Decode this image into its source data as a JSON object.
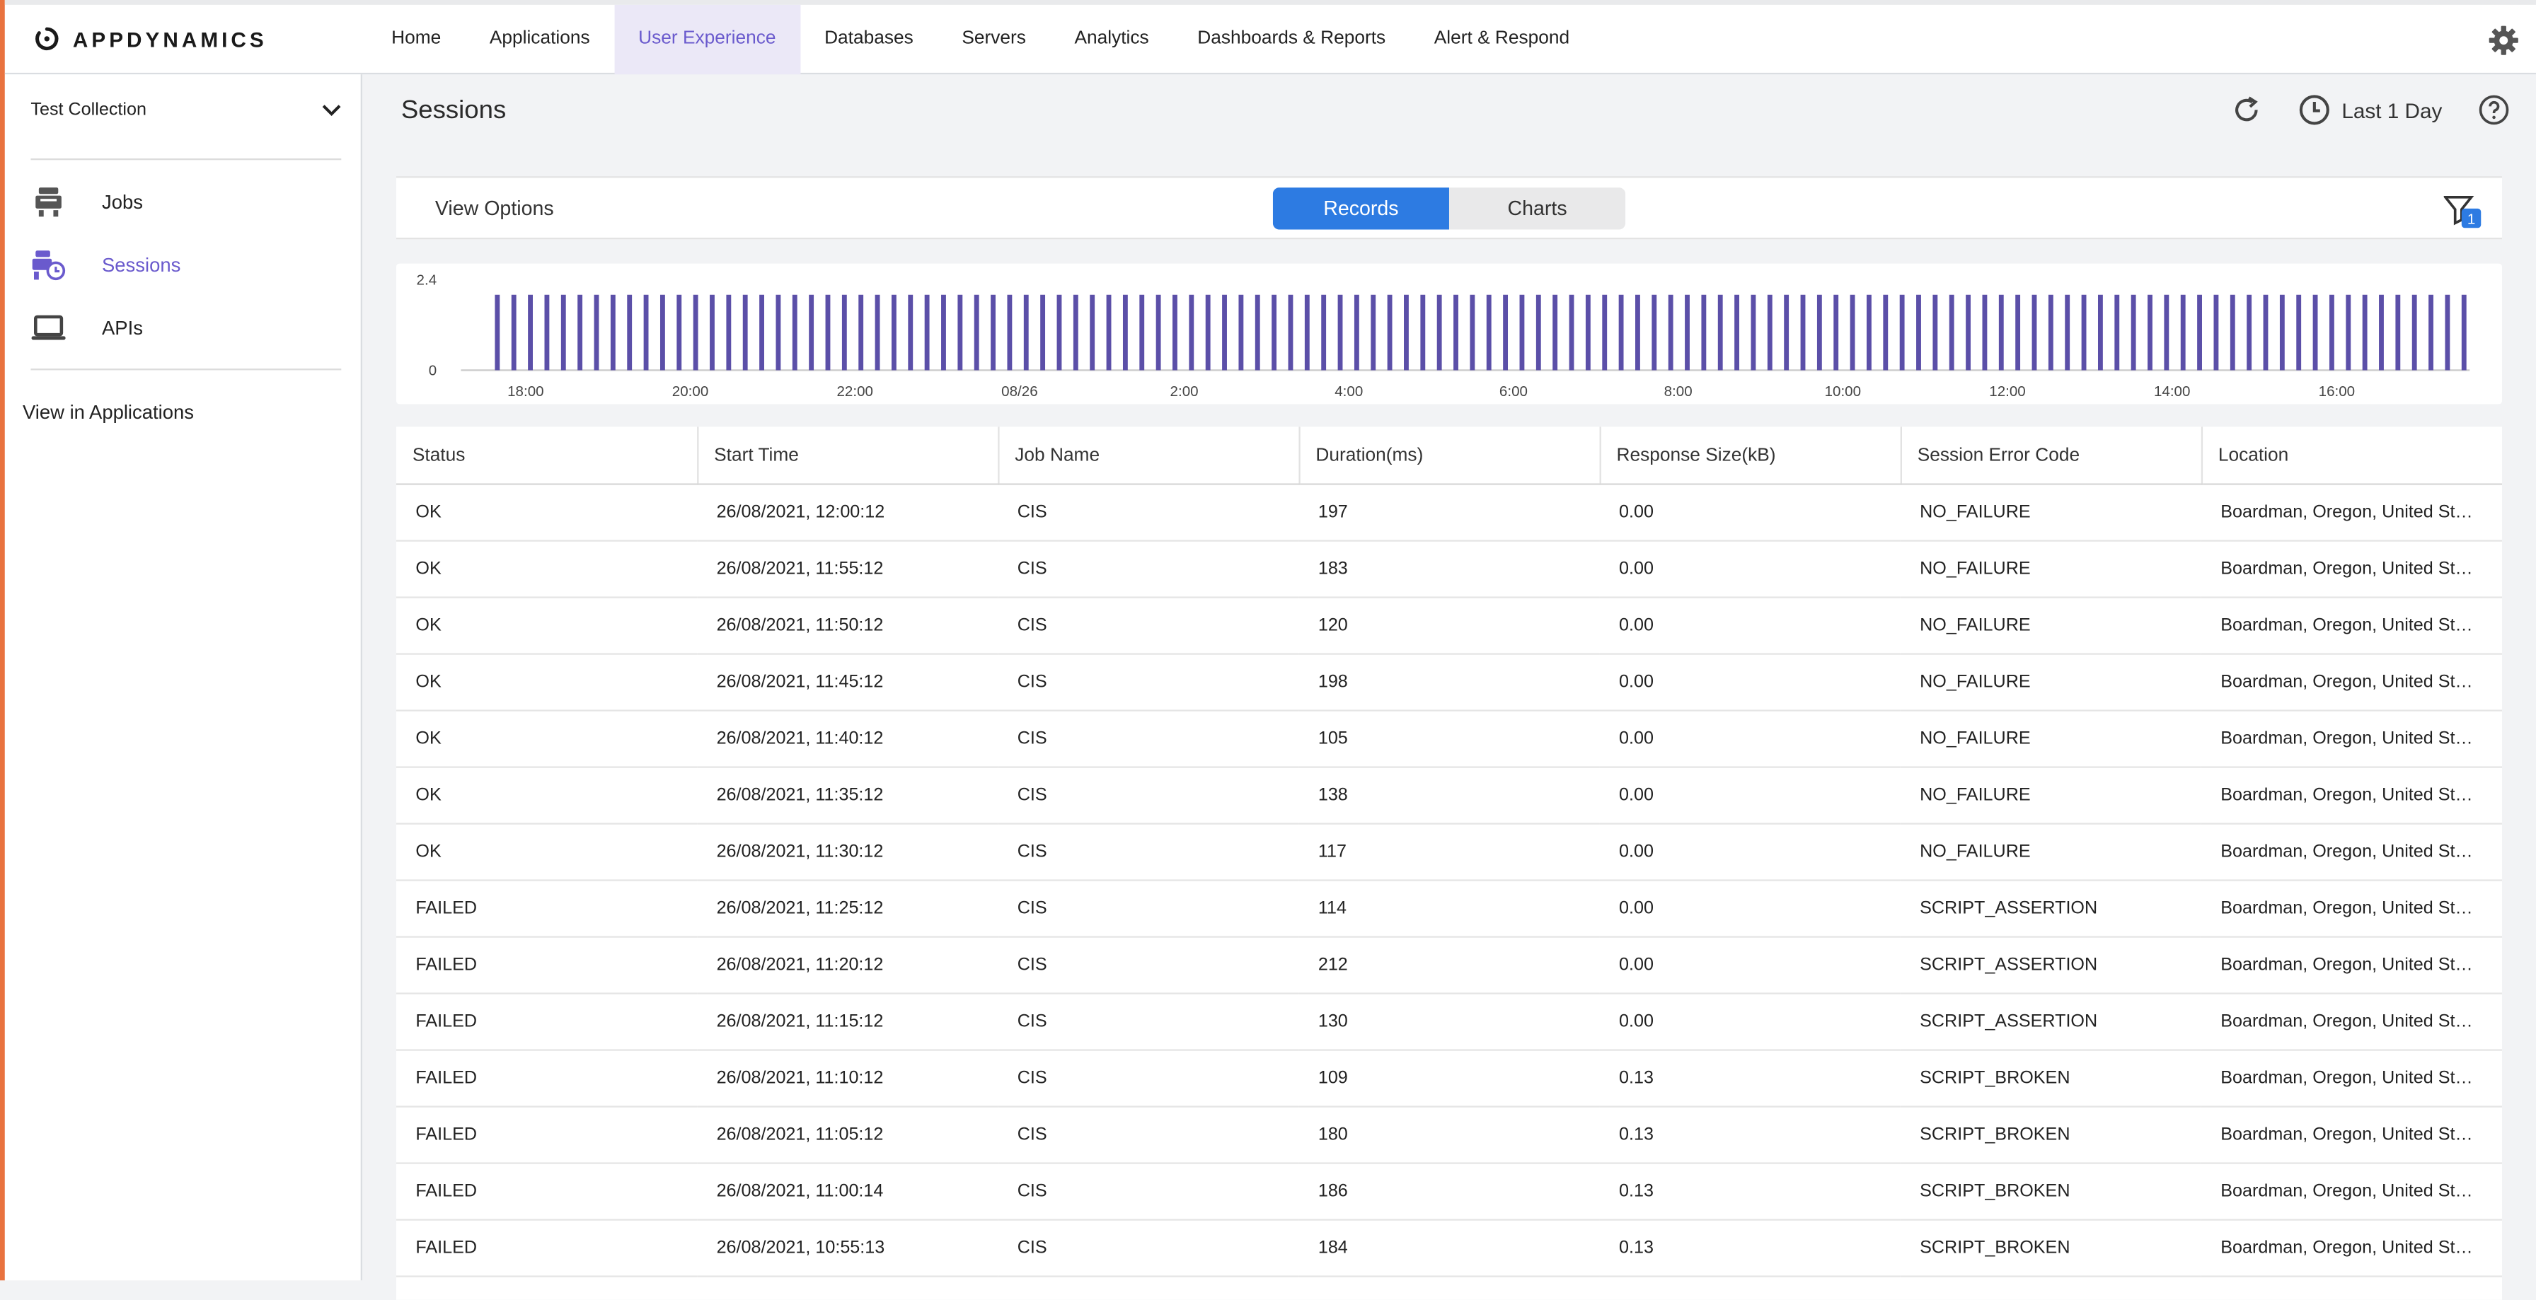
{
  "brand": {
    "name": "APPDYNAMICS"
  },
  "nav": {
    "tabs": [
      "Home",
      "Applications",
      "User Experience",
      "Databases",
      "Servers",
      "Analytics",
      "Dashboards & Reports",
      "Alert & Respond"
    ],
    "active": "User Experience"
  },
  "sidebar": {
    "collection": "Test Collection",
    "items": [
      {
        "label": "Jobs",
        "icon": "jobs-icon",
        "active": false
      },
      {
        "label": "Sessions",
        "icon": "sessions-icon",
        "active": true
      },
      {
        "label": "APIs",
        "icon": "laptop-icon",
        "active": false
      }
    ],
    "view_in_apps": "View in Applications"
  },
  "page": {
    "title": "Sessions",
    "time_range": "Last 1 Day"
  },
  "view_bar": {
    "label": "View Options",
    "toggle": [
      "Records",
      "Charts"
    ],
    "active": "Records",
    "filter_count": "1"
  },
  "chart_data": {
    "type": "bar",
    "ylim": [
      0,
      2.4
    ],
    "y_ticks": [
      "2.4",
      "0"
    ],
    "x_ticks": [
      "18:00",
      "20:00",
      "22:00",
      "08/26",
      "2:00",
      "4:00",
      "6:00",
      "8:00",
      "10:00",
      "12:00",
      "14:00",
      "16:00"
    ],
    "bar_count": 120,
    "bar_value": 2,
    "color": "#5b4fa8"
  },
  "table": {
    "columns": [
      "Status",
      "Start Time",
      "Job Name",
      "Duration(ms)",
      "Response Size(kB)",
      "Session Error Code",
      "Location"
    ],
    "rows": [
      [
        "OK",
        "26/08/2021, 12:00:12",
        "CIS",
        "197",
        "0.00",
        "NO_FAILURE",
        "Boardman, Oregon, United States"
      ],
      [
        "OK",
        "26/08/2021, 11:55:12",
        "CIS",
        "183",
        "0.00",
        "NO_FAILURE",
        "Boardman, Oregon, United States"
      ],
      [
        "OK",
        "26/08/2021, 11:50:12",
        "CIS",
        "120",
        "0.00",
        "NO_FAILURE",
        "Boardman, Oregon, United States"
      ],
      [
        "OK",
        "26/08/2021, 11:45:12",
        "CIS",
        "198",
        "0.00",
        "NO_FAILURE",
        "Boardman, Oregon, United States"
      ],
      [
        "OK",
        "26/08/2021, 11:40:12",
        "CIS",
        "105",
        "0.00",
        "NO_FAILURE",
        "Boardman, Oregon, United States"
      ],
      [
        "OK",
        "26/08/2021, 11:35:12",
        "CIS",
        "138",
        "0.00",
        "NO_FAILURE",
        "Boardman, Oregon, United States"
      ],
      [
        "OK",
        "26/08/2021, 11:30:12",
        "CIS",
        "117",
        "0.00",
        "NO_FAILURE",
        "Boardman, Oregon, United States"
      ],
      [
        "FAILED",
        "26/08/2021, 11:25:12",
        "CIS",
        "114",
        "0.00",
        "SCRIPT_ASSERTION",
        "Boardman, Oregon, United States"
      ],
      [
        "FAILED",
        "26/08/2021, 11:20:12",
        "CIS",
        "212",
        "0.00",
        "SCRIPT_ASSERTION",
        "Boardman, Oregon, United States"
      ],
      [
        "FAILED",
        "26/08/2021, 11:15:12",
        "CIS",
        "130",
        "0.00",
        "SCRIPT_ASSERTION",
        "Boardman, Oregon, United States"
      ],
      [
        "FAILED",
        "26/08/2021, 11:10:12",
        "CIS",
        "109",
        "0.13",
        "SCRIPT_BROKEN",
        "Boardman, Oregon, United States"
      ],
      [
        "FAILED",
        "26/08/2021, 11:05:12",
        "CIS",
        "180",
        "0.13",
        "SCRIPT_BROKEN",
        "Boardman, Oregon, United States"
      ],
      [
        "FAILED",
        "26/08/2021, 11:00:14",
        "CIS",
        "186",
        "0.13",
        "SCRIPT_BROKEN",
        "Boardman, Oregon, United States"
      ],
      [
        "FAILED",
        "26/08/2021, 10:55:13",
        "CIS",
        "184",
        "0.13",
        "SCRIPT_BROKEN",
        "Boardman, Oregon, United States"
      ]
    ]
  }
}
